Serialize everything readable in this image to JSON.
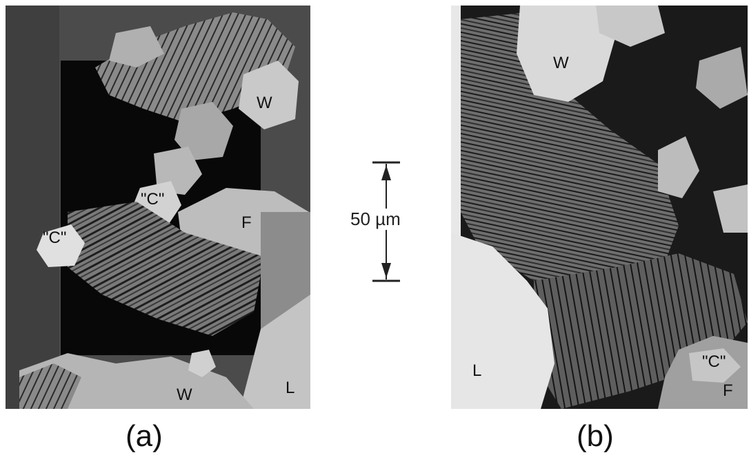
{
  "panel_a": {
    "caption": "(a)",
    "labels": {
      "w_top": "W",
      "c_mid": "\"C\"",
      "c_left": "\"C\"",
      "f": "F",
      "w_bottom": "W",
      "l": "L"
    }
  },
  "panel_b": {
    "caption": "(b)",
    "labels": {
      "w_top": "W",
      "l": "L",
      "c": "\"C\"",
      "f": "F"
    }
  },
  "scale_bar": {
    "label": "50 µm"
  }
}
